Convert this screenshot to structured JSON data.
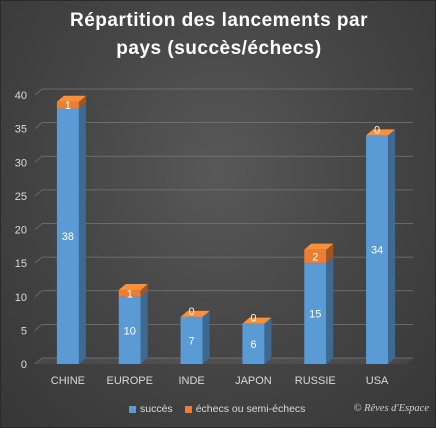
{
  "colors": {
    "success": "#5B9BD5",
    "failure": "#ED7D31"
  },
  "chart_data": {
    "type": "bar",
    "stacked": true,
    "title_line1": "Répartition des lancements par",
    "title_line2": "pays (succès/échecs)",
    "categories": [
      "CHINE",
      "EUROPE",
      "INDE",
      "JAPON",
      "RUSSIE",
      "USA"
    ],
    "series": [
      {
        "name": "succès",
        "values": [
          38,
          10,
          7,
          6,
          15,
          34
        ]
      },
      {
        "name": "échecs ou semi-échecs",
        "values": [
          1,
          1,
          0,
          0,
          2,
          0
        ]
      }
    ],
    "ylim": [
      0,
      40
    ],
    "yticks": [
      0,
      5,
      10,
      15,
      20,
      25,
      30,
      35,
      40
    ],
    "grid": true,
    "legend_position": "bottom"
  },
  "copyright": "© Rêves d'Espace"
}
